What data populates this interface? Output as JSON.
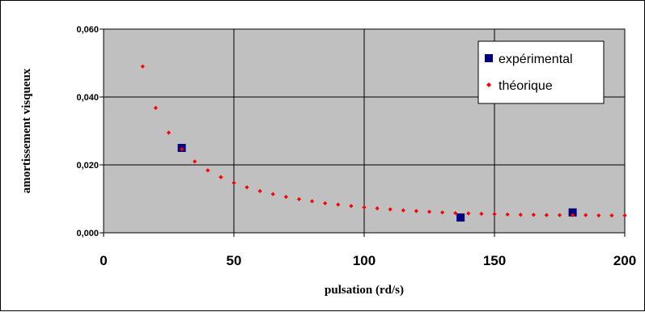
{
  "colors": {
    "plot_background": "#c0c0c0",
    "gridline": "#000000",
    "experimental": "#000080",
    "theoretical": "#ff0000"
  },
  "chart_data": {
    "type": "scatter",
    "title": "",
    "xlabel": "pulsation (rd/s)",
    "ylabel": "amortissement visqueux",
    "xlim": [
      0,
      200
    ],
    "ylim": [
      0,
      0.06
    ],
    "x_ticks": [
      "0",
      "50",
      "100",
      "150",
      "200"
    ],
    "y_ticks": [
      "0,000",
      "0,020",
      "0,040",
      "0,060"
    ],
    "grid": true,
    "legend": "top-right",
    "series": [
      {
        "name": "expérimental",
        "marker": "square",
        "color": "#000080",
        "x": [
          30,
          137,
          180
        ],
        "y": [
          0.025,
          0.0045,
          0.006
        ]
      },
      {
        "name": "théorique",
        "marker": "diamond",
        "color": "#ff0000",
        "x": [
          15,
          20,
          25,
          30,
          35,
          40,
          45,
          50,
          55,
          60,
          65,
          70,
          75,
          80,
          85,
          90,
          95,
          100,
          105,
          110,
          115,
          120,
          125,
          130,
          135,
          140,
          145,
          150,
          155,
          160,
          165,
          170,
          175,
          180,
          185,
          190,
          195,
          200
        ],
        "y": [
          0.049,
          0.0368,
          0.0295,
          0.0246,
          0.021,
          0.0184,
          0.0164,
          0.0147,
          0.0134,
          0.0123,
          0.0114,
          0.0106,
          0.0099,
          0.0093,
          0.0087,
          0.0083,
          0.0079,
          0.0075,
          0.0072,
          0.0069,
          0.0066,
          0.0064,
          0.0062,
          0.006,
          0.0058,
          0.0057,
          0.0056,
          0.0055,
          0.0054,
          0.0053,
          0.0053,
          0.0052,
          0.0052,
          0.0052,
          0.0052,
          0.0051,
          0.0051,
          0.0051
        ]
      }
    ]
  }
}
